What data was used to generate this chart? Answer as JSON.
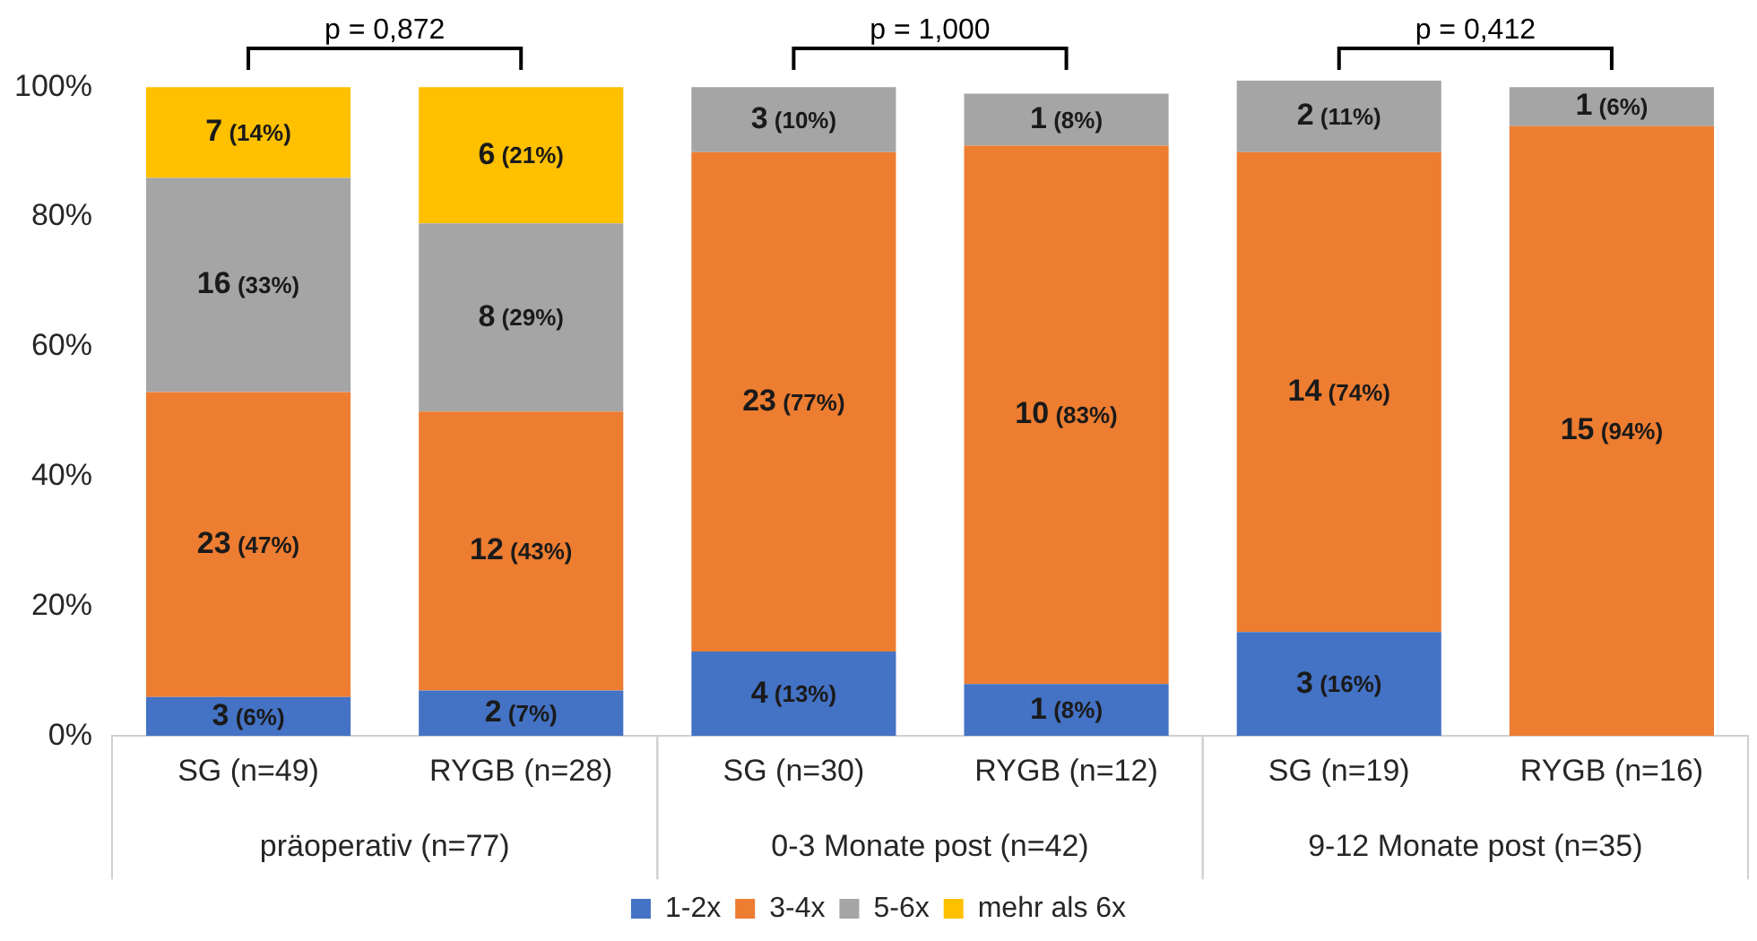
{
  "chart_data": {
    "type": "bar",
    "stacked": true,
    "categories": [
      "SG (n=49)",
      "RYGB (n=28)",
      "SG (n=30)",
      "RYGB (n=12)",
      "SG (n=19)",
      "RYGB (n=16)"
    ],
    "series": [
      {
        "name": "1-2x",
        "color": "#4472c4",
        "values": [
          6,
          7,
          13,
          8,
          16,
          0
        ],
        "value_labels": [
          "3 (6%)",
          "2 (7%)",
          "4 (13%)",
          "1 (8%)",
          "3 (16%)",
          null
        ]
      },
      {
        "name": "3-4x",
        "color": "#ed7d31",
        "values": [
          47,
          43,
          77,
          83,
          74,
          94
        ],
        "value_labels": [
          "23 (47%)",
          "12 (43%)",
          "23 (77%)",
          "10 (83%)",
          "14 (74%)",
          "15 (94%)"
        ]
      },
      {
        "name": "5-6x",
        "color": "#a5a5a5",
        "values": [
          33,
          29,
          10,
          8,
          11,
          6
        ],
        "value_labels": [
          "16 (33%)",
          "8 (29%)",
          "3 (10%)",
          "1 (8%)",
          "2 (11%)",
          "1 (6%)"
        ]
      },
      {
        "name": "mehr als 6x",
        "color": "#ffc000",
        "values": [
          14,
          21,
          0,
          0,
          0,
          0
        ],
        "value_labels": [
          "7 (14%)",
          "6 (21%)",
          null,
          null,
          null,
          null
        ]
      }
    ],
    "ylim": [
      0,
      101
    ],
    "yticks": [
      {
        "value": 0,
        "label": "0%"
      },
      {
        "value": 20,
        "label": "20%"
      },
      {
        "value": 40,
        "label": "40%"
      },
      {
        "value": 60,
        "label": "60%"
      },
      {
        "value": 80,
        "label": "80%"
      },
      {
        "value": 100,
        "label": "100%"
      }
    ],
    "grid": false,
    "legend": "bottom",
    "annotations": [
      "p = 0,872",
      "p = 1,000",
      "p = 0,412",
      "präoperativ (n=77)",
      "0-3 Monate post (n=42)",
      "9-12 Monate post (n=35)"
    ]
  }
}
